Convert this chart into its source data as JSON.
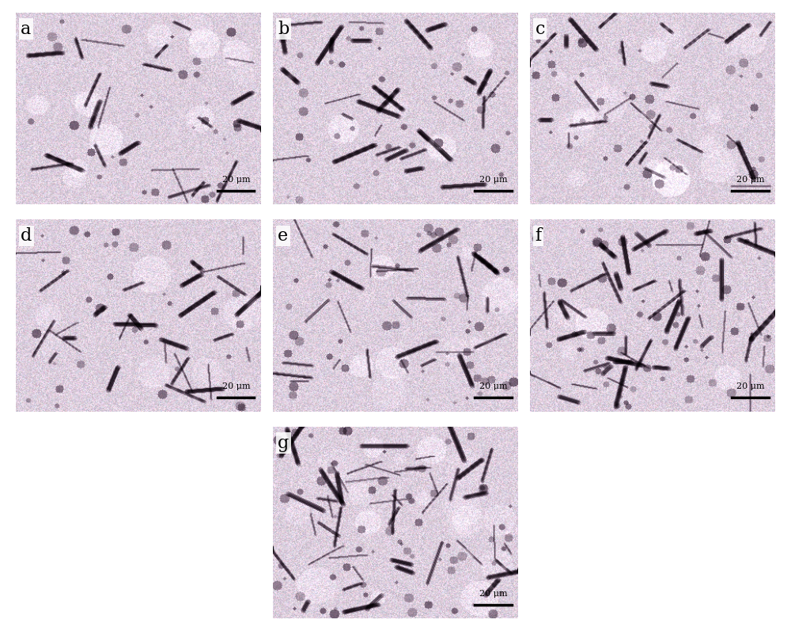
{
  "labels": [
    "a",
    "b",
    "c",
    "d",
    "e",
    "f",
    "g"
  ],
  "layout": [
    [
      0,
      1,
      2
    ],
    [
      3,
      4,
      5
    ],
    [
      6
    ]
  ],
  "scale_bar_text": "20 μm",
  "bg_color": "#ffffff",
  "label_fontsize": 16,
  "scalebar_fontsize": 8,
  "figure_width": 10.0,
  "figure_height": 7.97,
  "seeds": [
    42,
    123,
    77,
    200,
    55,
    88,
    33
  ],
  "panel_bg": "#c8c0c8"
}
